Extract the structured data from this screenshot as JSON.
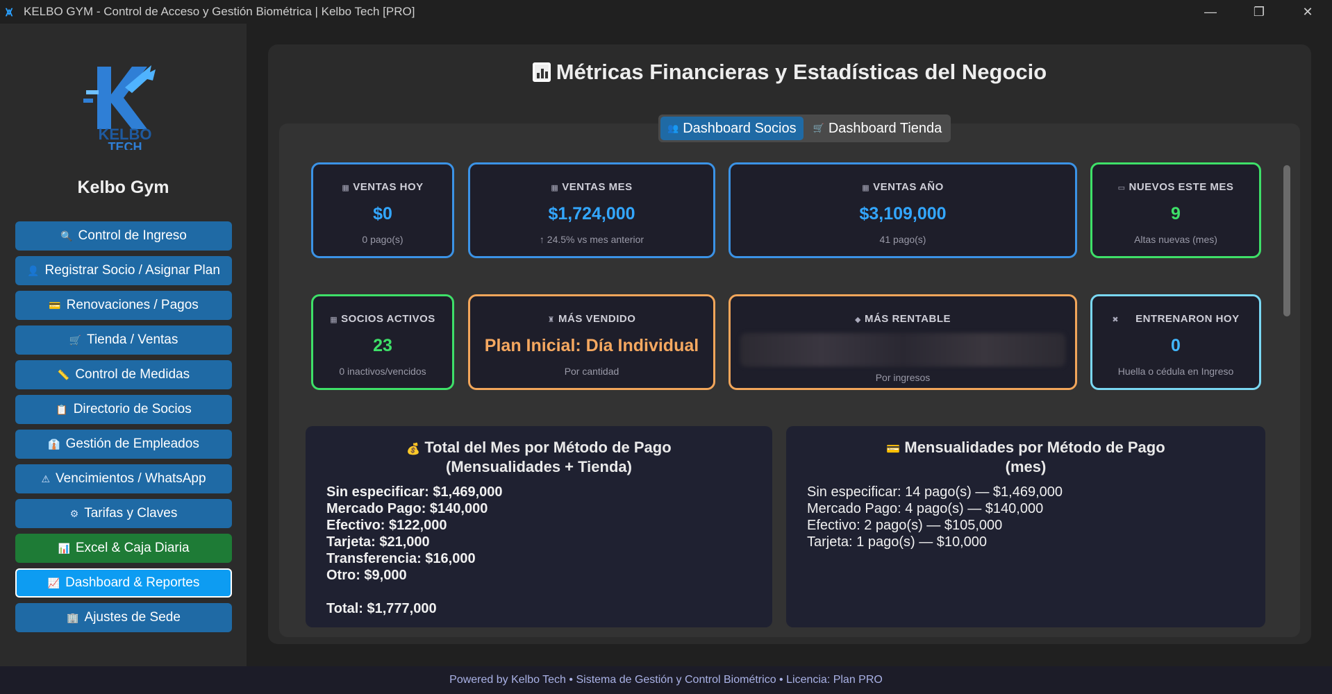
{
  "window": {
    "title": "KELBO GYM - Control de Acceso y Gestión Biométrica | Kelbo Tech [PRO]",
    "minimize": "—",
    "restore": "❐",
    "close": "✕"
  },
  "sidebar": {
    "logo_text_1": "KELBO",
    "logo_text_2": "TECH",
    "gym_name": "Kelbo Gym",
    "items": [
      {
        "label": "Control de Ingreso",
        "icon": "🔍"
      },
      {
        "label": "Registrar Socio / Asignar Plan",
        "icon": "👤"
      },
      {
        "label": "Renovaciones / Pagos",
        "icon": "💳"
      },
      {
        "label": "Tienda / Ventas",
        "icon": "🛒"
      },
      {
        "label": "Control de Medidas",
        "icon": "📏"
      },
      {
        "label": "Directorio de Socios",
        "icon": "📋"
      },
      {
        "label": "Gestión de Empleados",
        "icon": "👔"
      },
      {
        "label": "Vencimientos / WhatsApp",
        "icon": "⚠"
      },
      {
        "label": "Tarifas y Claves",
        "icon": "⚙"
      },
      {
        "label": "Excel & Caja Diaria",
        "icon": "📊"
      },
      {
        "label": "Dashboard & Reportes",
        "icon": "📈"
      },
      {
        "label": "Ajustes de Sede",
        "icon": "🏢"
      }
    ]
  },
  "main": {
    "title": "Métricas Financieras y Estadísticas del Negocio",
    "tabs": [
      {
        "label": "Dashboard Socios",
        "icon": "👥"
      },
      {
        "label": "Dashboard Tienda",
        "icon": "🛒"
      }
    ],
    "cards": {
      "ventas_hoy": {
        "label": "VENTAS HOY",
        "value": "$0",
        "sub": "0 pago(s)"
      },
      "ventas_mes": {
        "label": "VENTAS MES",
        "value": "$1,724,000",
        "sub": "↑ 24.5% vs mes anterior"
      },
      "ventas_anio": {
        "label": "VENTAS AÑO",
        "value": "$3,109,000",
        "sub": "41 pago(s)"
      },
      "nuevos_mes": {
        "label": "NUEVOS ESTE MES",
        "value": "9",
        "sub": "Altas nuevas (mes)"
      },
      "socios_activos": {
        "label": "SOCIOS ACTIVOS",
        "value": "23",
        "sub": "0 inactivos/vencidos"
      },
      "mas_vendido": {
        "label": "MÁS VENDIDO",
        "value": "Plan Inicial: Día Individual",
        "sub": "Por cantidad"
      },
      "mas_rentable": {
        "label": "MÁS RENTABLE",
        "sub": "Por ingresos"
      },
      "entrenaron_hoy": {
        "label": "ENTRENARON HOY",
        "value": "0",
        "sub": "Huella o cédula en Ingreso"
      }
    },
    "pay_total": {
      "title_1": "Total del Mes por Método de Pago",
      "title_2": "(Mensualidades + Tienda)",
      "rows": [
        "Sin especificar: $1,469,000",
        "Mercado Pago: $140,000",
        "Efectivo: $122,000",
        "Tarjeta: $21,000",
        "Transferencia: $16,000",
        "Otro: $9,000"
      ],
      "total": "Total: $1,777,000"
    },
    "pay_monthly": {
      "title_1": "Mensualidades por Método de Pago",
      "title_2": "(mes)",
      "rows": [
        "Sin especificar: 14 pago(s) — $1,469,000",
        "Mercado Pago: 4 pago(s) — $140,000",
        "Efectivo: 2 pago(s) — $105,000",
        "Tarjeta: 1 pago(s) — $10,000"
      ]
    }
  },
  "footer": {
    "powered": "Powered by Kelbo Tech",
    "sep": "•",
    "system": "Sistema de Gestión y Control Biométrico",
    "license": "Licencia: Plan PRO"
  },
  "colors": {
    "accent_blue": "#1f6aa5",
    "active_blue": "#0d9cf2",
    "green": "#3ee068",
    "orange": "#f2a65a",
    "value_blue": "#33a7ff"
  }
}
